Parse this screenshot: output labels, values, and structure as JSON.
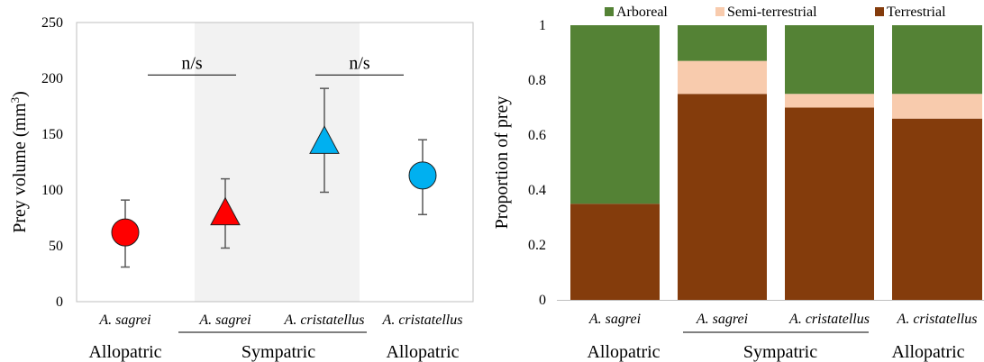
{
  "chart_data": [
    {
      "type": "scatter",
      "ylabel": "Prey volume (mm",
      "ylabel_sup": "3",
      "ylabel_close": ")",
      "ylim": [
        0,
        250
      ],
      "yticks": [
        0,
        50,
        100,
        150,
        200,
        250
      ],
      "grid": false,
      "shaded_group": "Sympatric",
      "categories": [
        "A. sagrei",
        "A. sagrei",
        "A. cristatellus",
        "A. cristatellus"
      ],
      "groups": [
        "Allopatric",
        "Sympatric",
        "Allopatric"
      ],
      "points": [
        {
          "category": "A. sagrei",
          "group": "Allopatric",
          "mean": 62,
          "lower": 31,
          "upper": 91,
          "marker": "circle",
          "color": "#ff0000"
        },
        {
          "category": "A. sagrei",
          "group": "Sympatric",
          "mean": 78,
          "lower": 48,
          "upper": 110,
          "marker": "triangle",
          "color": "#ff0000"
        },
        {
          "category": "A. cristatellus",
          "group": "Sympatric",
          "mean": 142,
          "lower": 98,
          "upper": 191,
          "marker": "triangle",
          "color": "#00b0f0"
        },
        {
          "category": "A. cristatellus",
          "group": "Allopatric",
          "mean": 113,
          "lower": 78,
          "upper": 145,
          "marker": "circle",
          "color": "#00b0f0"
        }
      ],
      "annotations": [
        {
          "text": "n/s",
          "between": [
            0,
            1
          ]
        },
        {
          "text": "n/s",
          "between": [
            2,
            3
          ]
        }
      ]
    },
    {
      "type": "bar",
      "stacked": true,
      "ylabel": "Proportion of prey",
      "ylim": [
        0,
        1
      ],
      "yticks": [
        "0",
        "0.2",
        "0.4",
        "0.6",
        "0.8",
        "1"
      ],
      "legend_position": "top",
      "categories": [
        "A. sagrei",
        "A. sagrei",
        "A. cristatellus",
        "A. cristatellus"
      ],
      "groups": [
        "Allopatric",
        "Sympatric",
        "Allopatric"
      ],
      "series": [
        {
          "name": "Terrestrial",
          "color": "#843c0c",
          "values": [
            0.35,
            0.75,
            0.7,
            0.66
          ]
        },
        {
          "name": "Semi-terrestrial",
          "color": "#f8cbad",
          "values": [
            0.0,
            0.12,
            0.05,
            0.09
          ]
        },
        {
          "name": "Arboreal",
          "color": "#548235",
          "values": [
            0.65,
            0.13,
            0.25,
            0.25
          ]
        }
      ],
      "legend_order": [
        "Arboreal",
        "Semi-terrestrial",
        "Terrestrial"
      ]
    }
  ]
}
